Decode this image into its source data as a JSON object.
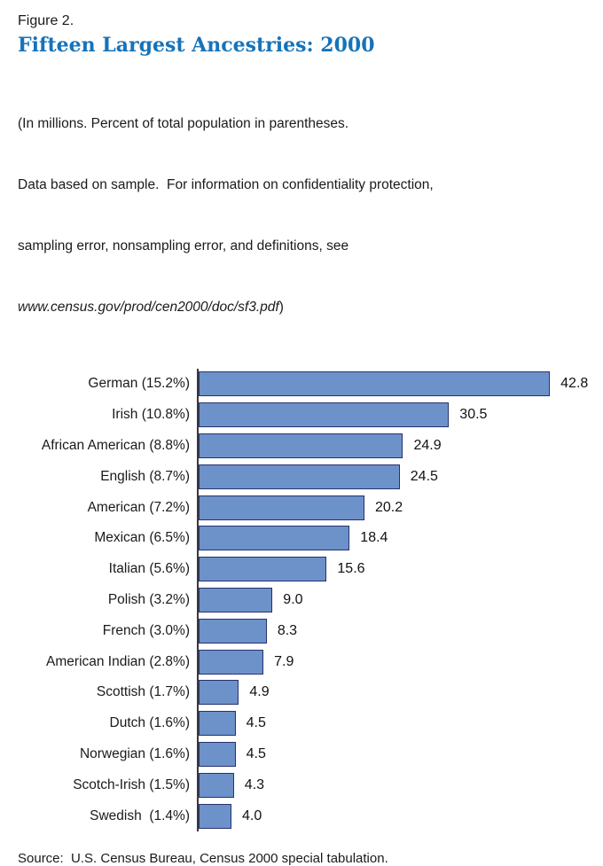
{
  "header": {
    "figure_label": "Figure 2.",
    "title": "Fifteen Largest Ancestries: 2000",
    "note_lines": [
      "(In millions. Percent of total population in parentheses.",
      "Data based on sample.  For information on confidentiality protection,",
      "sampling error, nonsampling error, and definitions, see"
    ],
    "note_url": "www.census.gov/prod/cen2000/doc/sf3.pdf",
    "note_close": ")"
  },
  "chart_data": {
    "type": "bar",
    "orientation": "horizontal",
    "title": "Fifteen Largest Ancestries: 2000",
    "unit": "millions",
    "categories": [
      "German (15.2%)",
      "Irish (10.8%)",
      "African American (8.8%)",
      "English (8.7%)",
      "American (7.2%)",
      "Mexican (6.5%)",
      "Italian (5.6%)",
      "Polish (3.2%)",
      "French (3.0%)",
      "American Indian (2.8%)",
      "Scottish (1.7%)",
      "Dutch (1.6%)",
      "Norwegian (1.6%)",
      "Scotch-Irish (1.5%)",
      "Swedish  (1.4%)"
    ],
    "values": [
      42.8,
      30.5,
      24.9,
      24.5,
      20.2,
      18.4,
      15.6,
      9.0,
      8.3,
      7.9,
      4.9,
      4.5,
      4.5,
      4.3,
      4.0
    ],
    "value_labels": [
      "42.8",
      "30.5",
      "24.9",
      "24.5",
      "20.2",
      "18.4",
      "15.6",
      "9.0",
      "8.3",
      "7.9",
      "4.9",
      "4.5",
      "4.5",
      "4.3",
      "4.0"
    ],
    "xlim": [
      0,
      43
    ],
    "grid": false,
    "legend": false
  },
  "footer": {
    "source": "Source:  U.S. Census Bureau, Census 2000 special tabulation."
  },
  "colors": {
    "title_blue": "#1673B9",
    "bar_fill": "#6C92C9",
    "bar_border": "#26316F",
    "axis": "#3A3A3A"
  }
}
